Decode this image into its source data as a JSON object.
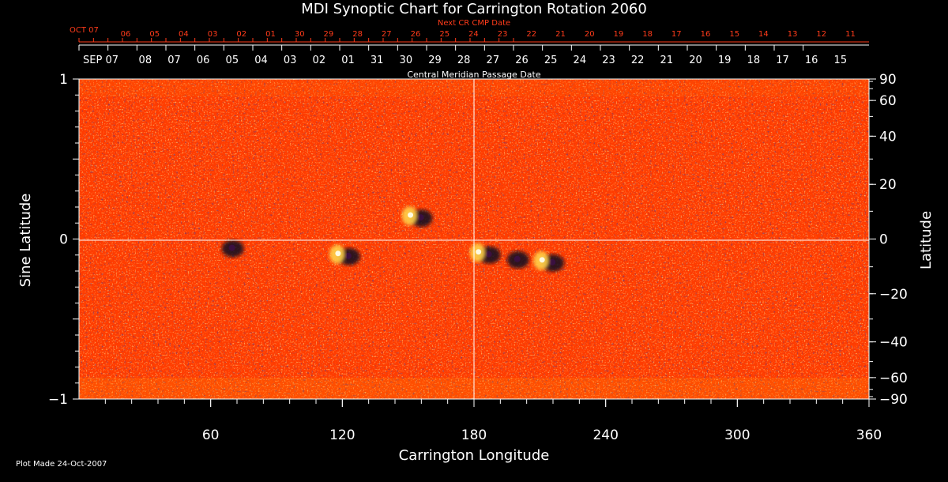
{
  "chart_data": {
    "type": "heatmap",
    "title": "MDI Synoptic Chart for Carrington Rotation 2060",
    "xlabel": "Carrington Longitude",
    "ylabel_left": "Sine Latitude",
    "ylabel_right": "Latitude",
    "xlim": [
      0,
      360
    ],
    "ylim": [
      -1,
      1
    ],
    "x_ticks": [
      "60",
      "120",
      "180",
      "240",
      "300",
      "360"
    ],
    "y_ticks_left": [
      "1",
      "0",
      "−1"
    ],
    "y_ticks_right": [
      "90",
      "60",
      "40",
      "20",
      "0",
      "−20",
      "−40",
      "−60",
      "−90"
    ],
    "top_axis": {
      "label": "Central Meridian Passage Date",
      "start_label": "SEP 07",
      "dates": [
        "08",
        "07",
        "06",
        "05",
        "04",
        "03",
        "02",
        "01",
        "31",
        "30",
        "29",
        "28",
        "27",
        "26",
        "25",
        "24",
        "23",
        "22",
        "21",
        "20",
        "19",
        "18",
        "17",
        "16",
        "15"
      ]
    },
    "next_axis": {
      "label": "Next CR CMP Date",
      "start_label": "OCT 07",
      "dates": [
        "06",
        "05",
        "04",
        "03",
        "02",
        "01",
        "30",
        "29",
        "28",
        "27",
        "26",
        "25",
        "24",
        "23",
        "22",
        "21",
        "20",
        "19",
        "18",
        "17",
        "16",
        "15",
        "14",
        "13",
        "12",
        "11"
      ]
    },
    "grid": "crosshair at longitude 180 and sine latitude 0",
    "colormap": [
      "#0a0820",
      "#3a1040",
      "#ff2a00",
      "#ffd24a",
      "#fffbe0"
    ],
    "active_regions": [
      {
        "lon": 69,
        "sinlat": -0.05,
        "polarity": "negative"
      },
      {
        "lon": 122,
        "sinlat": -0.1,
        "polarity": "mixed"
      },
      {
        "lon": 155,
        "sinlat": 0.14,
        "polarity": "mixed"
      },
      {
        "lon": 186,
        "sinlat": -0.09,
        "polarity": "mixed"
      },
      {
        "lon": 199,
        "sinlat": -0.12,
        "polarity": "negative"
      },
      {
        "lon": 215,
        "sinlat": -0.14,
        "polarity": "mixed"
      }
    ]
  },
  "footer": "Plot Made 24-Oct-2007"
}
